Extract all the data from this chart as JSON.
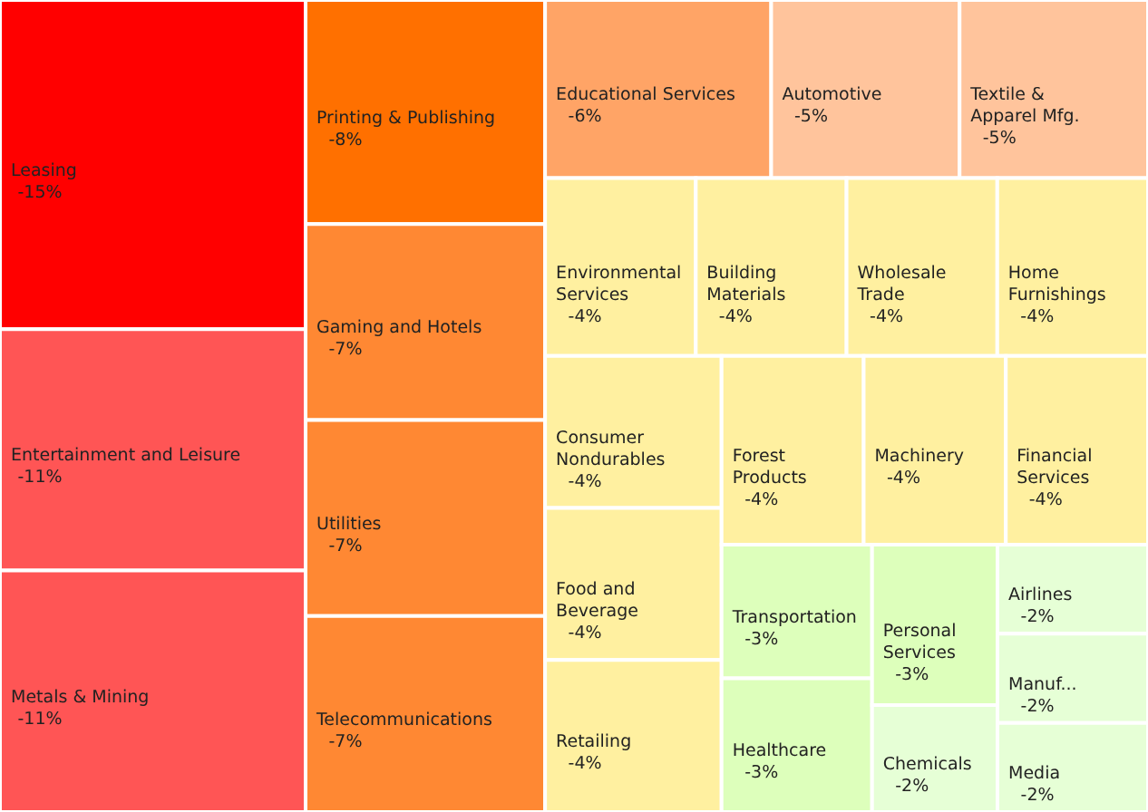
{
  "chart_data": {
    "type": "other",
    "categories": [
      "Leasing",
      "Entertainment and Leisure",
      "Metals & Mining",
      "Printing & Publishing",
      "Gaming and Hotels",
      "Utilities",
      "Telecommunications",
      "Educational Services",
      "Automotive",
      "Textile & Apparel Mfg.",
      "Environmental Services",
      "Building Materials",
      "Wholesale Trade",
      "Home Furnishings",
      "Consumer Nondurables",
      "Food and Beverage",
      "Retailing",
      "Forest Products",
      "Machinery",
      "Financial Services",
      "Transportation",
      "Healthcare",
      "Personal Services",
      "Chemicals",
      "Airlines",
      "Manuf...",
      "Media"
    ],
    "values": [
      -15,
      -11,
      -11,
      -8,
      -7,
      -7,
      -7,
      -6,
      -5,
      -5,
      -4,
      -4,
      -4,
      -4,
      -4,
      -4,
      -4,
      -4,
      -4,
      -4,
      -3,
      -3,
      -3,
      -2,
      -2,
      -2,
      -2
    ],
    "value_labels": [
      "-15%",
      "-11%",
      "-11%",
      "-8%",
      "-7%",
      "-7%",
      "-7%",
      "-6%",
      "-5%",
      "-5%",
      "-4%",
      "-4%",
      "-4%",
      "-4%",
      "-4%",
      "-4%",
      "-4%",
      "-4%",
      "-4%",
      "-4%",
      "-3%",
      "-3%",
      "-3%",
      "-2%",
      "-2%",
      "-2%",
      "-2%"
    ],
    "colors": [
      "#ff0000",
      "#ff5555",
      "#ff5555",
      "#ff7000",
      "#ff8833",
      "#ff8833",
      "#ff8833",
      "#ffa466",
      "#ffc49c",
      "#ffc49c",
      "#fff0a0",
      "#fff0a0",
      "#fff0a0",
      "#fff0a0",
      "#fff0a0",
      "#fff0a0",
      "#fff0a0",
      "#fff0a0",
      "#fff0a0",
      "#fff0a0",
      "#ddffbb",
      "#ddffbb",
      "#ddffbb",
      "#e6ffd6",
      "#e6ffd6",
      "#e6ffd6",
      "#e6ffd6"
    ]
  }
}
